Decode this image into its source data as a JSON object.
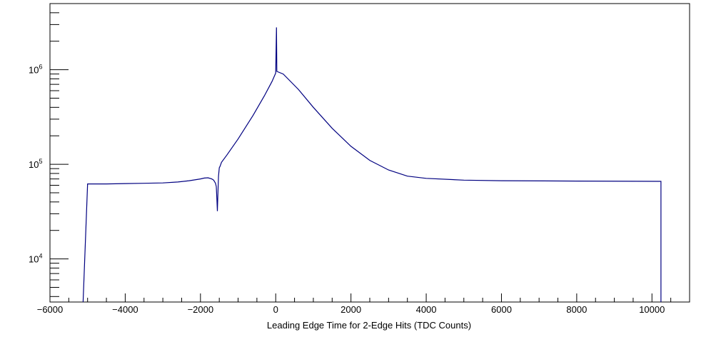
{
  "chart_data": {
    "type": "histogram",
    "title": "",
    "xlabel": "Leading Edge Time for 2-Edge Hits (TDC Counts)",
    "ylabel": "",
    "xlim": [
      -6000,
      11000
    ],
    "ylim": [
      3500,
      5000000
    ],
    "yscale": "log",
    "grid": false,
    "legend": "none",
    "line_color": "#000080",
    "x_ticks": [
      -6000,
      -4000,
      -2000,
      0,
      2000,
      4000,
      6000,
      8000,
      10000
    ],
    "x_tick_labels": [
      "−6000",
      "−4000",
      "−2000",
      "0",
      "2000",
      "4000",
      "6000",
      "8000",
      "10000"
    ],
    "y_ticks": [
      {
        "value": 10000,
        "base": "10",
        "exp": "4"
      },
      {
        "value": 100000,
        "base": "10",
        "exp": "5"
      },
      {
        "value": 1000000,
        "base": "10",
        "exp": "6"
      }
    ],
    "series": [
      {
        "x": [
          -5120,
          -5000,
          -4500,
          -4000,
          -3500,
          -3000,
          -2600,
          -2300,
          -2000,
          -1900,
          -1800,
          -1700,
          -1650,
          -1600,
          -1580,
          -1560,
          -1550,
          -1540,
          -1520,
          -1500,
          -1480,
          -1460,
          -1440,
          -1300,
          -1000,
          -600,
          -300,
          -100,
          0,
          20,
          30,
          200,
          600,
          1000,
          1500,
          2000,
          2500,
          3000,
          3500,
          4000,
          5000,
          6000,
          8000,
          10240
        ],
        "y": [
          3500,
          62000,
          62000,
          62500,
          63000,
          63500,
          65000,
          67000,
          70000,
          71500,
          72000,
          70000,
          68000,
          63000,
          58000,
          40000,
          32000,
          45000,
          75000,
          92000,
          95000,
          100000,
          105000,
          125000,
          185000,
          330000,
          530000,
          750000,
          920000,
          2800000,
          960000,
          900000,
          620000,
          400000,
          240000,
          155000,
          110000,
          87000,
          75000,
          71000,
          68000,
          67000,
          66500,
          66000
        ]
      }
    ]
  }
}
